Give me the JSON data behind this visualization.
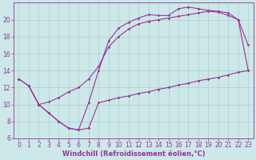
{
  "bg_color": "#cce8e8",
  "line_color": "#993399",
  "grid_color": "#aacfcf",
  "xlabel": "Windchill (Refroidissement éolien,°C)",
  "xlabel_fontsize": 6.0,
  "tick_fontsize": 5.5,
  "xlim": [
    -0.5,
    23.5
  ],
  "ylim": [
    6,
    22
  ],
  "yticks": [
    6,
    8,
    10,
    12,
    14,
    16,
    18,
    20
  ],
  "xticks": [
    0,
    1,
    2,
    3,
    4,
    5,
    6,
    7,
    8,
    9,
    10,
    11,
    12,
    13,
    14,
    15,
    16,
    17,
    18,
    19,
    20,
    21,
    22,
    23
  ],
  "line1_x": [
    0,
    1,
    2,
    3,
    4,
    5,
    6,
    7,
    8,
    9,
    10,
    11,
    12,
    13,
    14,
    15,
    16,
    17,
    18,
    19,
    20,
    21,
    22,
    23
  ],
  "line1_y": [
    13.0,
    12.2,
    10.0,
    9.0,
    8.0,
    7.2,
    7.0,
    10.2,
    14.0,
    17.5,
    19.0,
    19.7,
    20.2,
    20.6,
    20.5,
    20.5,
    21.3,
    21.5,
    21.3,
    21.1,
    21.0,
    20.8,
    20.0,
    17.0
  ],
  "line2_x": [
    0,
    1,
    2,
    3,
    4,
    5,
    6,
    7,
    8,
    9,
    10,
    11,
    12,
    13,
    14,
    15,
    16,
    17,
    18,
    19,
    20,
    21,
    22,
    23
  ],
  "line2_y": [
    13.0,
    12.2,
    10.0,
    10.3,
    10.8,
    11.5,
    12.0,
    13.0,
    14.5,
    16.8,
    18.0,
    18.9,
    19.5,
    19.8,
    20.0,
    20.2,
    20.4,
    20.6,
    20.8,
    21.0,
    20.9,
    20.5,
    20.0,
    14.0
  ],
  "line3_x": [
    1,
    2,
    3,
    4,
    5,
    6,
    7,
    8,
    9,
    10,
    11,
    12,
    13,
    14,
    15,
    16,
    17,
    18,
    19,
    20,
    21,
    22,
    23
  ],
  "line3_y": [
    12.2,
    10.0,
    9.0,
    8.0,
    7.2,
    7.0,
    7.2,
    10.2,
    10.5,
    10.8,
    11.0,
    11.3,
    11.5,
    11.8,
    12.0,
    12.3,
    12.5,
    12.8,
    13.0,
    13.2,
    13.5,
    13.8,
    14.0
  ]
}
